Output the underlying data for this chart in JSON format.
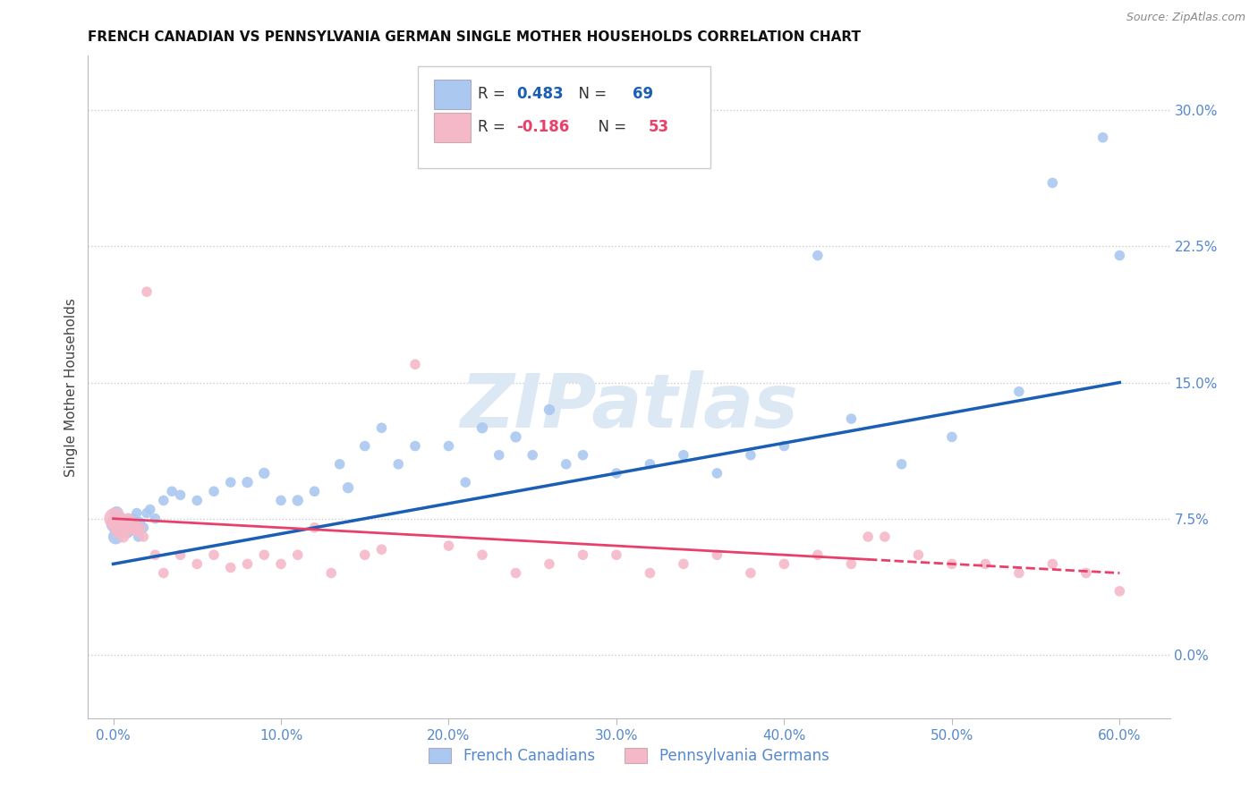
{
  "title": "FRENCH CANADIAN VS PENNSYLVANIA GERMAN SINGLE MOTHER HOUSEHOLDS CORRELATION CHART",
  "source": "Source: ZipAtlas.com",
  "ylabel": "Single Mother Households",
  "xlabel_ticks": [
    "0.0%",
    "10.0%",
    "20.0%",
    "30.0%",
    "40.0%",
    "50.0%",
    "60.0%"
  ],
  "xlabel_vals": [
    0.0,
    10.0,
    20.0,
    30.0,
    40.0,
    50.0,
    60.0
  ],
  "ylabel_ticks": [
    "0.0%",
    "7.5%",
    "15.0%",
    "22.5%",
    "30.0%"
  ],
  "ylabel_vals": [
    0.0,
    7.5,
    15.0,
    22.5,
    30.0
  ],
  "xlim": [
    -1.5,
    63
  ],
  "ylim": [
    -3.5,
    33
  ],
  "blue_R": 0.483,
  "blue_N": 69,
  "pink_R": -0.186,
  "pink_N": 53,
  "blue_color": "#aac8f0",
  "pink_color": "#f5b8c8",
  "line_blue": "#1a5fb4",
  "line_pink": "#e8406a",
  "watermark": "ZIPatlas",
  "watermark_color": "#dde8f5",
  "legend_label_blue": "French Canadians",
  "legend_label_pink": "Pennsylvania Germans",
  "blue_line_start_x": 0,
  "blue_line_start_y": 5.0,
  "blue_line_end_x": 60,
  "blue_line_end_y": 15.0,
  "pink_line_start_x": 0,
  "pink_line_start_y": 7.5,
  "pink_line_end_x": 60,
  "pink_line_end_y": 4.5,
  "pink_solid_end": 45,
  "blue_x": [
    0.1,
    0.15,
    0.2,
    0.25,
    0.3,
    0.35,
    0.4,
    0.45,
    0.5,
    0.55,
    0.6,
    0.65,
    0.7,
    0.75,
    0.8,
    0.85,
    0.9,
    0.95,
    1.0,
    1.1,
    1.2,
    1.3,
    1.4,
    1.5,
    1.6,
    1.8,
    2.0,
    2.2,
    2.5,
    3.0,
    3.5,
    4.0,
    5.0,
    6.0,
    7.0,
    8.0,
    9.0,
    10.0,
    11.0,
    12.0,
    13.5,
    14.0,
    15.0,
    16.0,
    17.0,
    18.0,
    20.0,
    21.0,
    22.0,
    23.0,
    24.0,
    25.0,
    26.0,
    27.0,
    28.0,
    30.0,
    32.0,
    34.0,
    36.0,
    38.0,
    40.0,
    42.0,
    44.0,
    47.0,
    50.0,
    54.0,
    56.0,
    59.0,
    60.0
  ],
  "blue_y": [
    7.2,
    6.5,
    7.8,
    6.8,
    7.5,
    7.0,
    6.8,
    7.3,
    7.5,
    6.9,
    7.1,
    7.4,
    6.8,
    7.2,
    7.0,
    6.7,
    7.5,
    7.0,
    6.8,
    7.2,
    7.5,
    7.0,
    7.8,
    6.5,
    7.3,
    7.0,
    7.8,
    8.0,
    7.5,
    8.5,
    9.0,
    8.8,
    8.5,
    9.0,
    9.5,
    9.5,
    10.0,
    8.5,
    8.5,
    9.0,
    10.5,
    9.2,
    11.5,
    12.5,
    10.5,
    11.5,
    11.5,
    9.5,
    12.5,
    11.0,
    12.0,
    11.0,
    13.5,
    10.5,
    11.0,
    10.0,
    10.5,
    11.0,
    10.0,
    11.0,
    11.5,
    22.0,
    13.0,
    10.5,
    12.0,
    14.5,
    26.0,
    28.5,
    22.0
  ],
  "blue_sizes": [
    200,
    150,
    120,
    100,
    100,
    90,
    80,
    80,
    80,
    70,
    70,
    70,
    70,
    70,
    70,
    70,
    70,
    70,
    70,
    70,
    70,
    70,
    70,
    70,
    70,
    70,
    70,
    70,
    70,
    70,
    70,
    70,
    70,
    70,
    70,
    80,
    80,
    70,
    80,
    70,
    70,
    80,
    70,
    70,
    70,
    70,
    70,
    70,
    80,
    70,
    80,
    70,
    80,
    70,
    70,
    70,
    70,
    70,
    70,
    70,
    70,
    70,
    70,
    70,
    70,
    70,
    70,
    70,
    70
  ],
  "pink_x": [
    0.1,
    0.2,
    0.3,
    0.4,
    0.5,
    0.6,
    0.7,
    0.8,
    0.9,
    1.0,
    1.1,
    1.2,
    1.4,
    1.6,
    1.8,
    2.0,
    2.5,
    3.0,
    4.0,
    5.0,
    6.0,
    7.0,
    8.0,
    9.0,
    10.0,
    11.0,
    12.0,
    13.0,
    15.0,
    16.0,
    18.0,
    20.0,
    22.0,
    24.0,
    26.0,
    28.0,
    30.0,
    32.0,
    34.0,
    36.0,
    38.0,
    40.0,
    42.0,
    44.0,
    46.0,
    48.0,
    50.0,
    52.0,
    54.0,
    56.0,
    58.0,
    60.0,
    45.0
  ],
  "pink_y": [
    7.5,
    7.2,
    6.8,
    7.3,
    7.0,
    6.5,
    7.2,
    6.8,
    7.5,
    7.1,
    6.9,
    7.3,
    6.8,
    7.0,
    6.5,
    20.0,
    5.5,
    4.5,
    5.5,
    5.0,
    5.5,
    4.8,
    5.0,
    5.5,
    5.0,
    5.5,
    7.0,
    4.5,
    5.5,
    5.8,
    16.0,
    6.0,
    5.5,
    4.5,
    5.0,
    5.5,
    5.5,
    4.5,
    5.0,
    5.5,
    4.5,
    5.0,
    5.5,
    5.0,
    6.5,
    5.5,
    5.0,
    5.0,
    4.5,
    5.0,
    4.5,
    3.5,
    6.5
  ],
  "pink_sizes": [
    300,
    200,
    120,
    100,
    100,
    90,
    80,
    80,
    80,
    80,
    70,
    70,
    70,
    70,
    70,
    70,
    70,
    70,
    70,
    70,
    70,
    70,
    70,
    70,
    70,
    70,
    70,
    70,
    70,
    70,
    70,
    70,
    70,
    70,
    70,
    70,
    70,
    70,
    70,
    70,
    70,
    70,
    70,
    70,
    70,
    70,
    70,
    70,
    70,
    70,
    70,
    70,
    70
  ]
}
